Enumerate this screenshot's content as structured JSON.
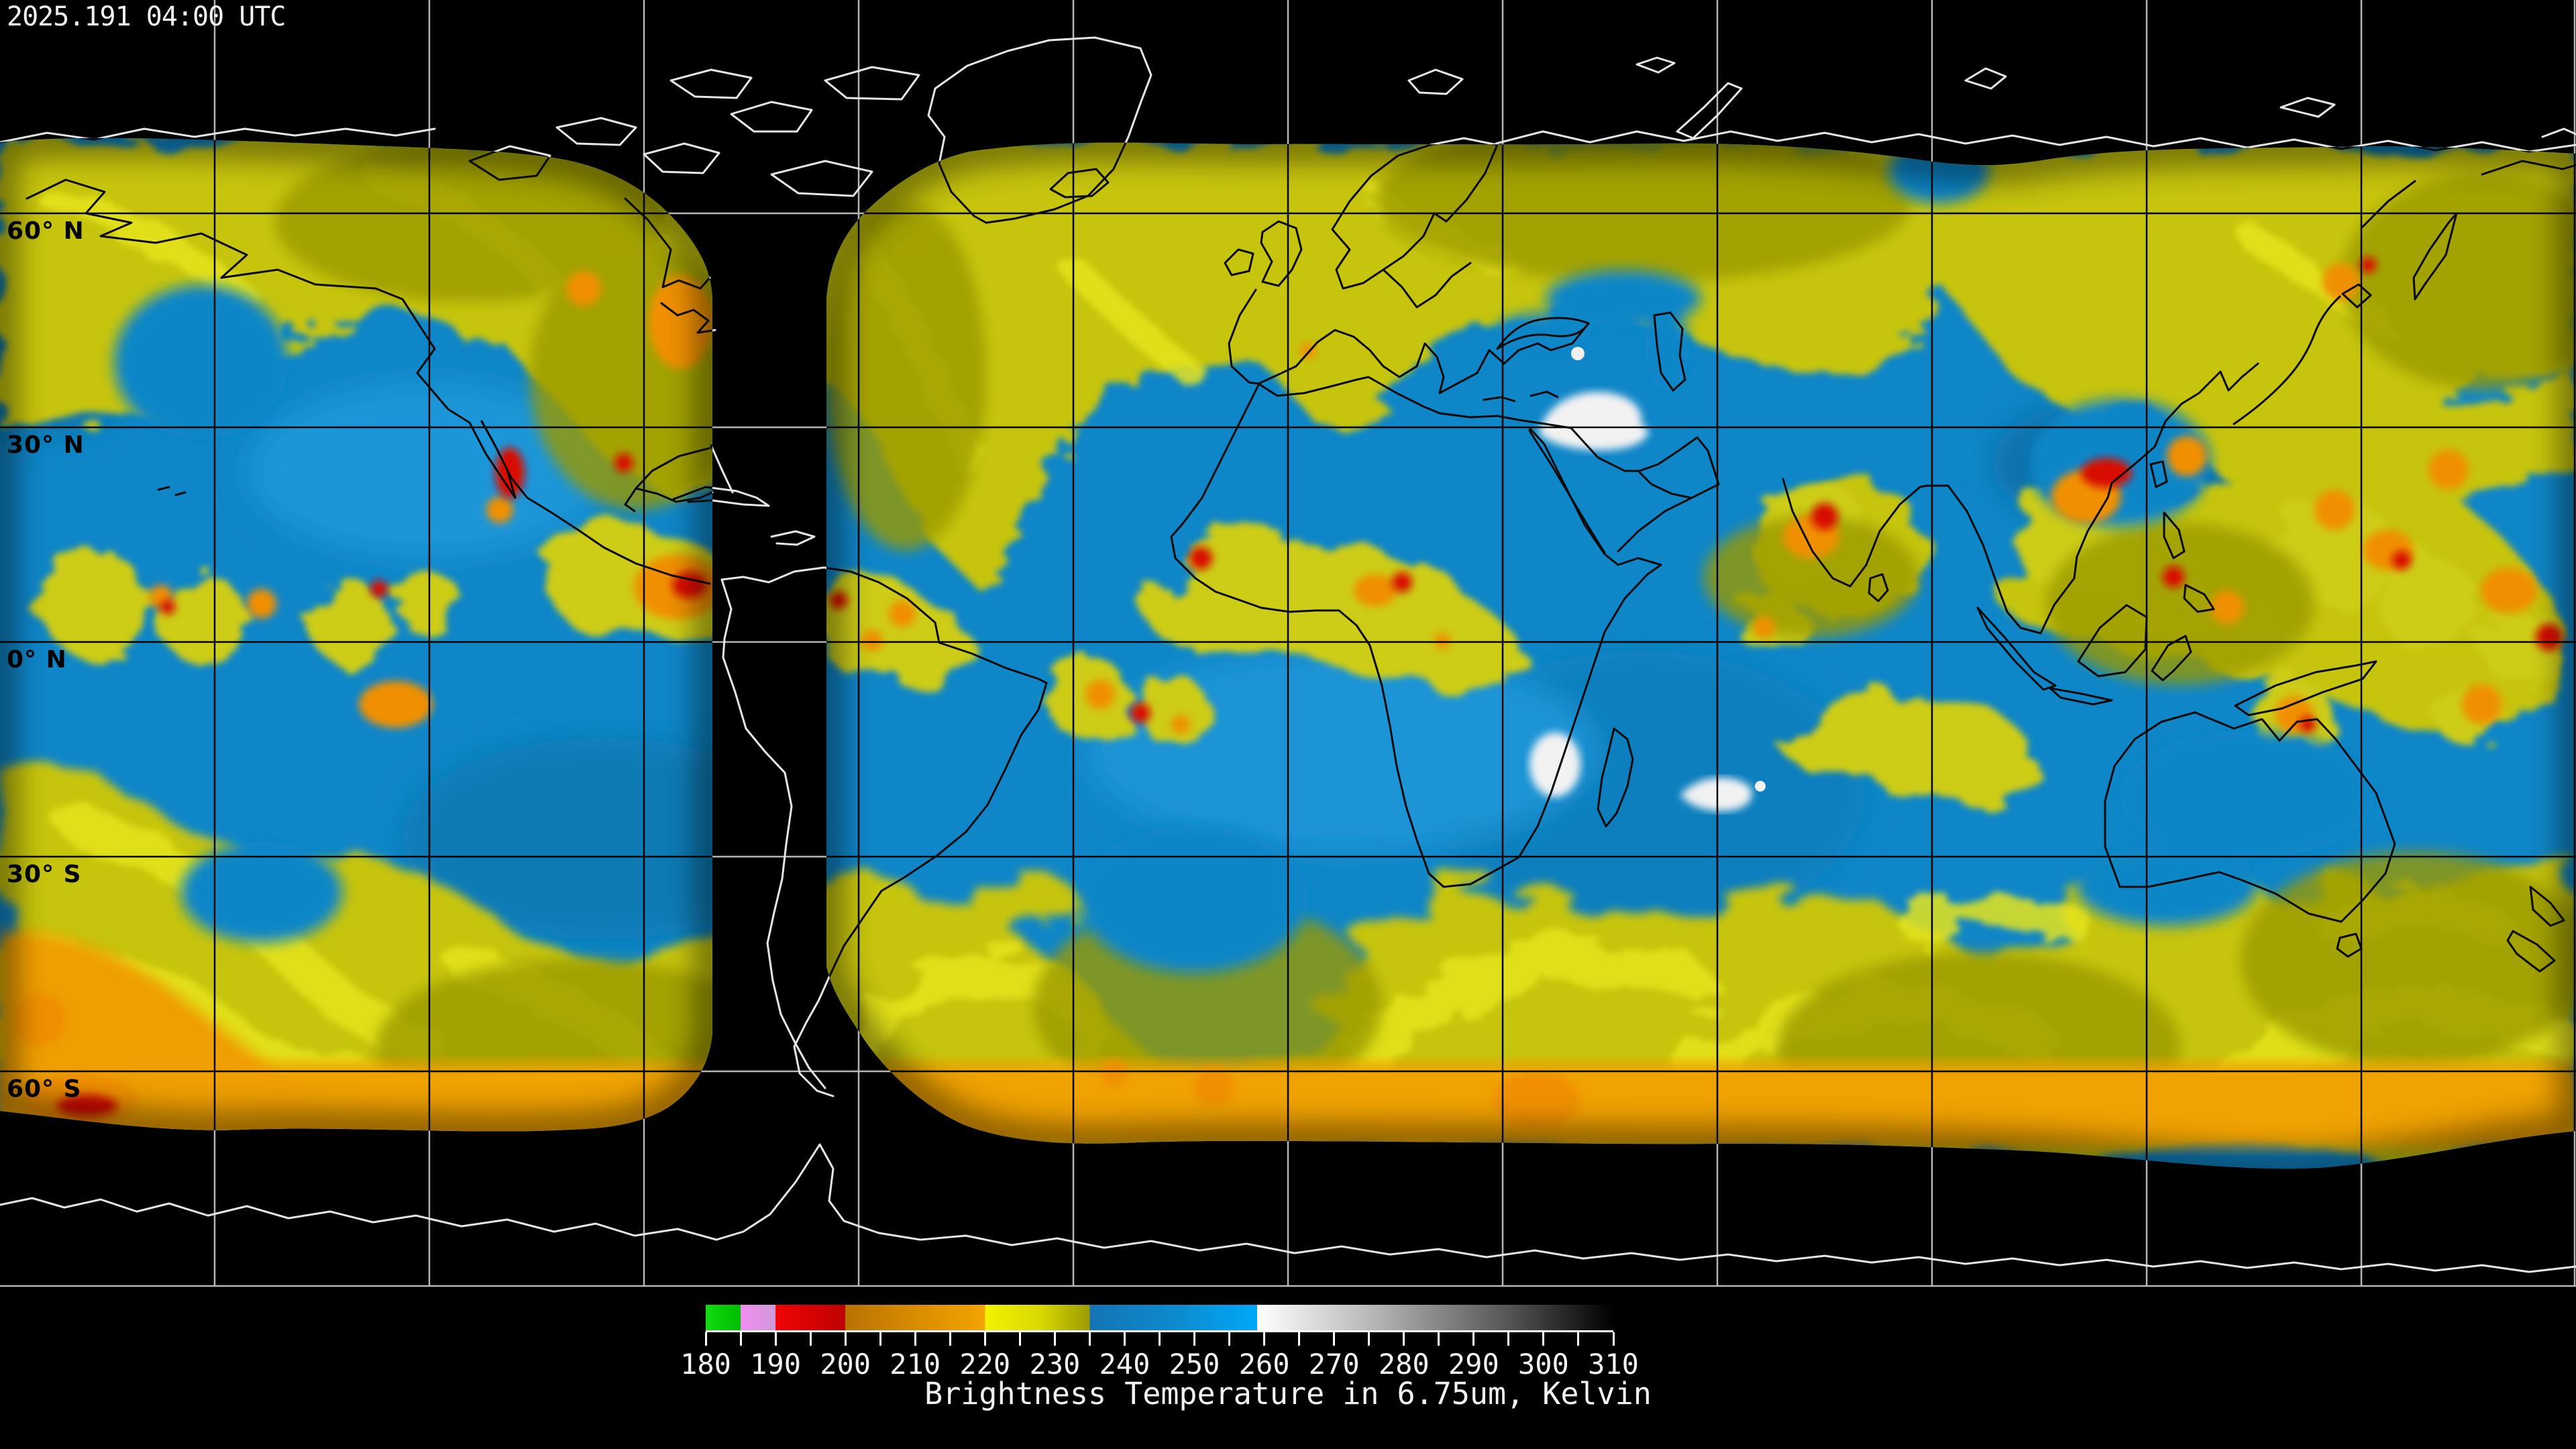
{
  "header": {
    "timestamp": "2025.191 04:00 UTC"
  },
  "map": {
    "latitude_labels": [
      "60° N",
      "30° N",
      "0° N",
      "30° S",
      "60° S"
    ],
    "graticule_spacing_degrees": 30,
    "no_data_color": "#000000",
    "coastline_color_over_data": "#0a0a0a",
    "coastline_color_over_void": "#e6e6e6",
    "palette_note": "water vapor brightness temperature composite",
    "key_colors": {
      "moist_upper_troposphere_yellow": "#c6c411",
      "dry_midlevel_blue": "#0f86c8",
      "cold_cloud_orange": "#f09b00",
      "very_cold_cloud_red": "#d81000",
      "warm_surface_white": "#f2f2f2"
    }
  },
  "colorbar": {
    "title": "Brightness Temperature in 6.75um, Kelvin",
    "min": 180,
    "max": 310,
    "tick_step": 5,
    "label_step": 10,
    "tick_labels": [
      180,
      190,
      200,
      210,
      220,
      230,
      240,
      250,
      260,
      270,
      280,
      290,
      300,
      310
    ],
    "stops": [
      {
        "value": 180,
        "color": "#12dc12"
      },
      {
        "value": 185,
        "color": "#00bc00"
      },
      {
        "value": 185,
        "color": "#f28cf2"
      },
      {
        "value": 190,
        "color": "#cf9ad8"
      },
      {
        "value": 190,
        "color": "#f00505"
      },
      {
        "value": 200,
        "color": "#bd0000"
      },
      {
        "value": 200,
        "color": "#b87300"
      },
      {
        "value": 210,
        "color": "#d88c00"
      },
      {
        "value": 220,
        "color": "#f2a400"
      },
      {
        "value": 220,
        "color": "#f2f200"
      },
      {
        "value": 228,
        "color": "#d8d800"
      },
      {
        "value": 235,
        "color": "#9a9a00"
      },
      {
        "value": 235,
        "color": "#1474b4"
      },
      {
        "value": 248,
        "color": "#0d8cd0"
      },
      {
        "value": 259,
        "color": "#00a8f8"
      },
      {
        "value": 259,
        "color": "#ffffff"
      },
      {
        "value": 275,
        "color": "#b9b9b9"
      },
      {
        "value": 295,
        "color": "#555555"
      },
      {
        "value": 310,
        "color": "#000000"
      }
    ]
  }
}
